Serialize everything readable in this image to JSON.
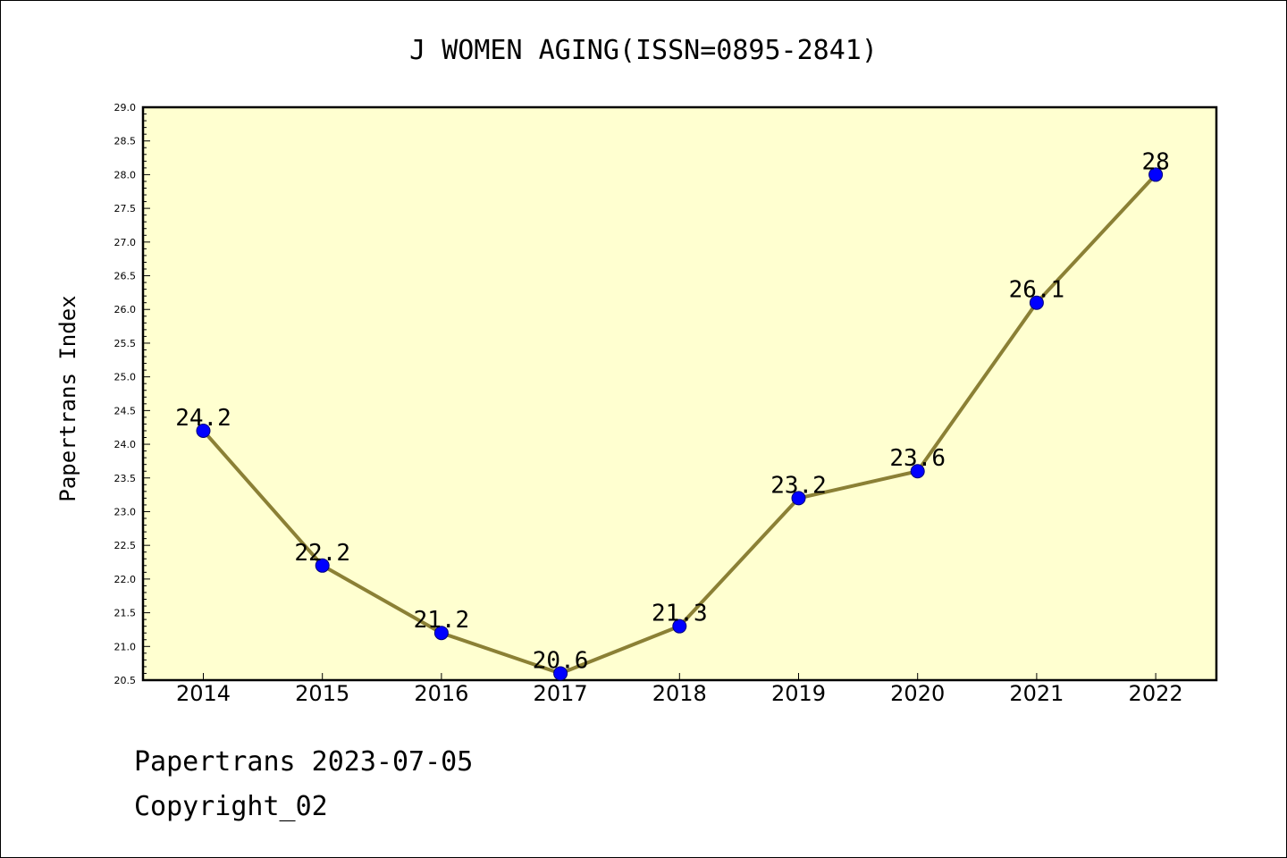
{
  "footer": {
    "line1": "Papertrans 2023-07-05",
    "line2": "Copyright_02"
  },
  "chart_data": {
    "type": "line",
    "title": "J WOMEN AGING(ISSN=0895-2841)",
    "xlabel": "",
    "ylabel": "Papertrans Index",
    "categories": [
      "2014",
      "2015",
      "2016",
      "2017",
      "2018",
      "2019",
      "2020",
      "2021",
      "2022"
    ],
    "series": [
      {
        "values": [
          24.2,
          22.2,
          21.2,
          20.6,
          21.3,
          23.2,
          23.6,
          26.1,
          28.0
        ]
      }
    ],
    "data_labels": [
      "24.2",
      "22.2",
      "21.2",
      "20.6",
      "21.3",
      "23.2",
      "23.6",
      "26.1",
      "28"
    ],
    "ylim": [
      20.5,
      29.0
    ],
    "yticks": [
      "20.5",
      "21.0",
      "21.5",
      "22.0",
      "22.5",
      "23.0",
      "23.5",
      "24.0",
      "24.5",
      "25.0",
      "25.5",
      "26.0",
      "26.5",
      "27.0",
      "27.5",
      "28.0",
      "28.5",
      "29.0"
    ],
    "grid": false,
    "legend": "none",
    "colors": {
      "plot_background": "#ffffd0",
      "line": "#8b8035",
      "marker": "#0000ff",
      "marker_edge": "#00007a"
    }
  }
}
